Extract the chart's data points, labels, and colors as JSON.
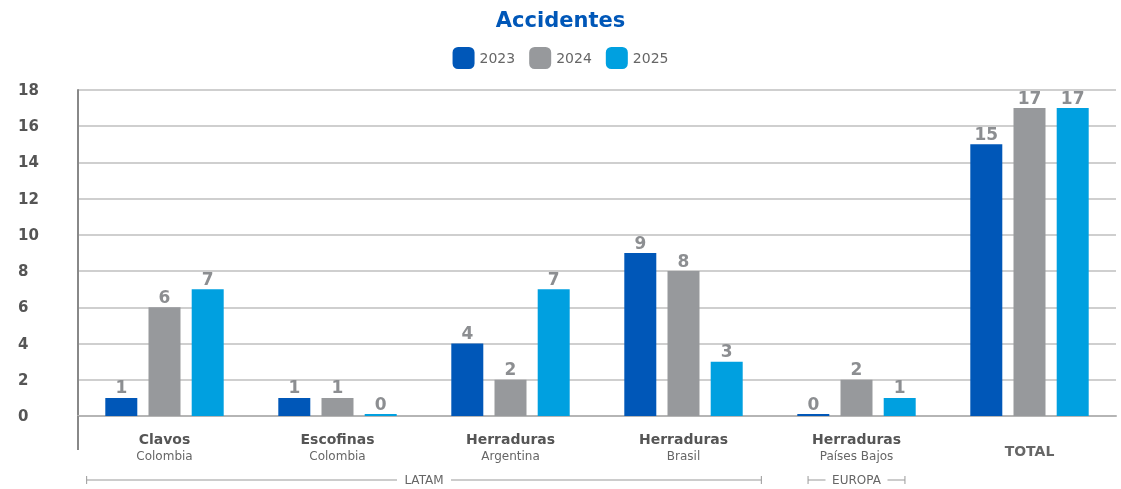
{
  "chart_data": {
    "type": "bar",
    "title": "Accidentes",
    "categories": [
      "Clavos\nColombia",
      "Escofinas\nColombia",
      "Herraduras\nArgentina",
      "Herraduras\nBrasil",
      "Herraduras\nPaíses Bajos",
      "TOTAL"
    ],
    "series": [
      {
        "name": "2023",
        "color": "#0057b8",
        "values": [
          1,
          1,
          4,
          9,
          0,
          15
        ]
      },
      {
        "name": "2024",
        "color": "#97999c",
        "values": [
          6,
          1,
          2,
          8,
          2,
          17
        ]
      },
      {
        "name": "2025",
        "color": "#00a0e0",
        "values": [
          7,
          0,
          7,
          3,
          1,
          17
        ]
      }
    ],
    "ylim": [
      0,
      18
    ],
    "yticks": [
      0,
      2,
      4,
      6,
      8,
      10,
      12,
      14,
      16,
      18
    ],
    "grid": "y",
    "legend": "top",
    "data_labels": true,
    "annotations": [
      "LATAM",
      "EUROPA"
    ]
  }
}
